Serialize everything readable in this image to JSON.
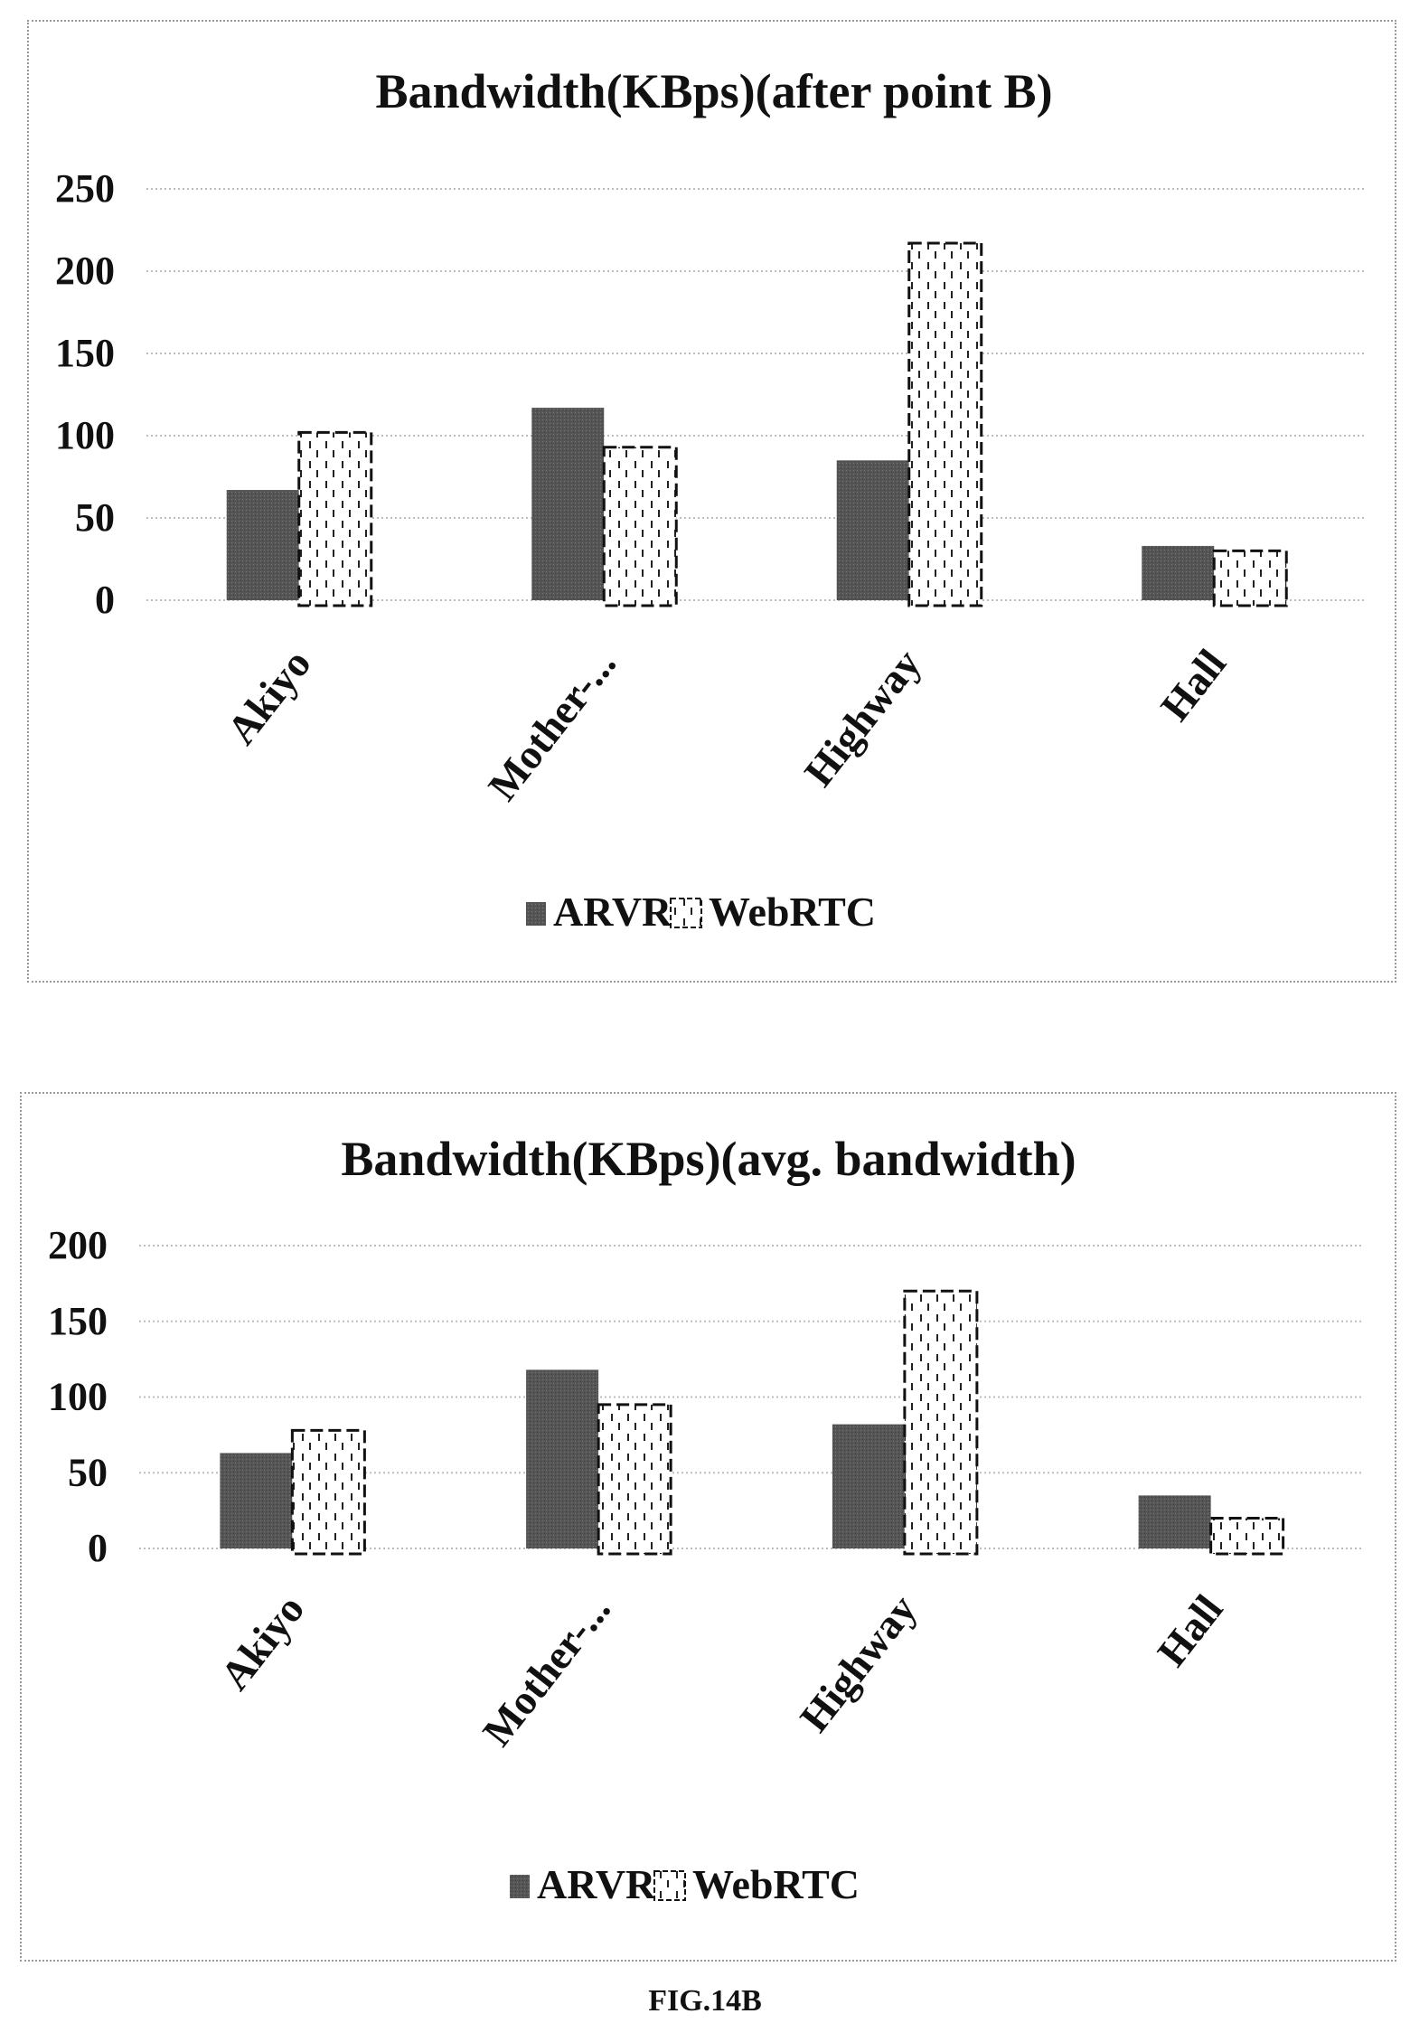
{
  "figure_caption": "FIG.14B",
  "colors": {
    "arvr": "#555555",
    "webrtc_fill": "#ffffff",
    "stroke": "#111111",
    "grid": "#bdbdbd"
  },
  "chart_data": [
    {
      "type": "bar",
      "title": "Bandwidth(KBps)(after point B)",
      "categories": [
        "Akiyo",
        "Mother-...",
        "Highway",
        "Hall"
      ],
      "series": [
        {
          "name": "ARVR",
          "values": [
            67,
            117,
            85,
            33
          ]
        },
        {
          "name": "WebRTC",
          "values": [
            102,
            93,
            217,
            30
          ]
        }
      ],
      "ylim": [
        0,
        250
      ],
      "yticks": [
        "0",
        "50",
        "100",
        "150",
        "200",
        "250"
      ],
      "grid": true,
      "legend": "bottom",
      "xlabel": "",
      "ylabel": ""
    },
    {
      "type": "bar",
      "title": "Bandwidth(KBps)(avg. bandwidth)",
      "categories": [
        "Akiyo",
        "Mother-...",
        "Highway",
        "Hall"
      ],
      "series": [
        {
          "name": "ARVR",
          "values": [
            63,
            118,
            82,
            35
          ]
        },
        {
          "name": "WebRTC",
          "values": [
            78,
            95,
            170,
            20
          ]
        }
      ],
      "ylim": [
        0,
        200
      ],
      "yticks": [
        "0",
        "50",
        "100",
        "150",
        "200"
      ],
      "grid": true,
      "legend": "bottom",
      "xlabel": "",
      "ylabel": ""
    }
  ]
}
